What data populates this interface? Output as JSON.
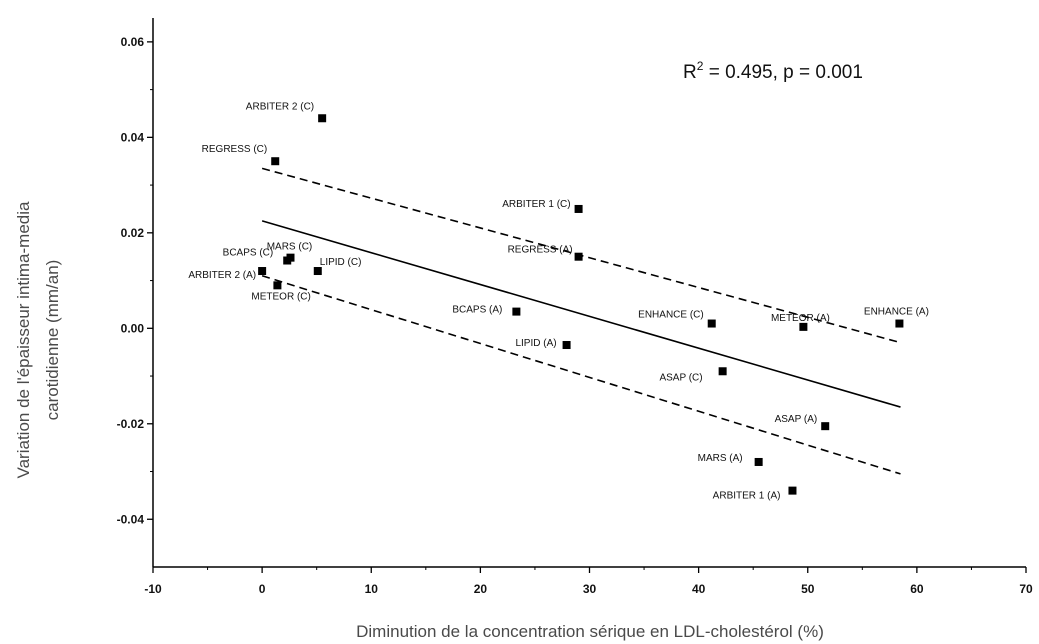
{
  "chart_data": {
    "type": "scatter",
    "xlabel": "Diminution de la concentration sérique en LDL-cholestérol (%)",
    "ylabel_lines": [
      "Variation de l'épaisseur intima-media",
      "carotidienne (mm/an)"
    ],
    "xlim": [
      -10,
      70
    ],
    "ylim": [
      -0.05,
      0.065
    ],
    "xticks": [
      -10,
      0,
      10,
      20,
      30,
      40,
      50,
      60,
      70
    ],
    "yticks": [
      -0.04,
      -0.02,
      0.0,
      0.02,
      0.04,
      0.06
    ],
    "xtick_labels": [
      "-10",
      "0",
      "10",
      "20",
      "30",
      "40",
      "50",
      "60",
      "70"
    ],
    "ytick_labels": [
      "-0.04",
      "-0.02",
      "0.00",
      "0.02",
      "0.04",
      "0.06"
    ],
    "annotation": {
      "r_label": "R",
      "r_exp": "2",
      "rest": " = 0.495, p = 0.001"
    },
    "points": [
      {
        "label": "ARBITER 2 (C)",
        "x": 5.5,
        "y": 0.044
      },
      {
        "label": "REGRESS (C)",
        "x": 1.2,
        "y": 0.035
      },
      {
        "label": "ARBITER 1 (C)",
        "x": 29.0,
        "y": 0.025
      },
      {
        "label": "REGRESS (A)",
        "x": 29.0,
        "y": 0.015
      },
      {
        "label": "MARS (C)",
        "x": 2.6,
        "y": 0.0148
      },
      {
        "label": "BCAPS (C)",
        "x": 2.3,
        "y": 0.0142
      },
      {
        "label": "LIPID (C)",
        "x": 5.1,
        "y": 0.012
      },
      {
        "label": "ARBITER 2 (A)",
        "x": 0.0,
        "y": 0.012
      },
      {
        "label": "METEOR (C)",
        "x": 1.4,
        "y": 0.009
      },
      {
        "label": "BCAPS (A)",
        "x": 23.3,
        "y": 0.0035
      },
      {
        "label": "ENHANCE (C)",
        "x": 41.2,
        "y": 0.001
      },
      {
        "label": "METEOR (A)",
        "x": 49.6,
        "y": 0.0003
      },
      {
        "label": "ENHANCE (A)",
        "x": 58.4,
        "y": 0.001
      },
      {
        "label": "LIPID (A)",
        "x": 27.9,
        "y": -0.0035
      },
      {
        "label": "ASAP (C)",
        "x": 42.2,
        "y": -0.009
      },
      {
        "label": "ASAP (A)",
        "x": 51.6,
        "y": -0.0205
      },
      {
        "label": "MARS (A)",
        "x": 45.5,
        "y": -0.028
      },
      {
        "label": "ARBITER 1 (A)",
        "x": 48.6,
        "y": -0.034
      }
    ],
    "regression_line": {
      "x": [
        0,
        58.5
      ],
      "y": [
        0.0225,
        -0.0165
      ]
    },
    "ci_upper": {
      "x": [
        0,
        58.5
      ],
      "y": [
        0.0335,
        -0.003
      ]
    },
    "ci_lower": {
      "x": [
        0,
        58.5
      ],
      "y": [
        0.011,
        -0.0305
      ]
    }
  }
}
